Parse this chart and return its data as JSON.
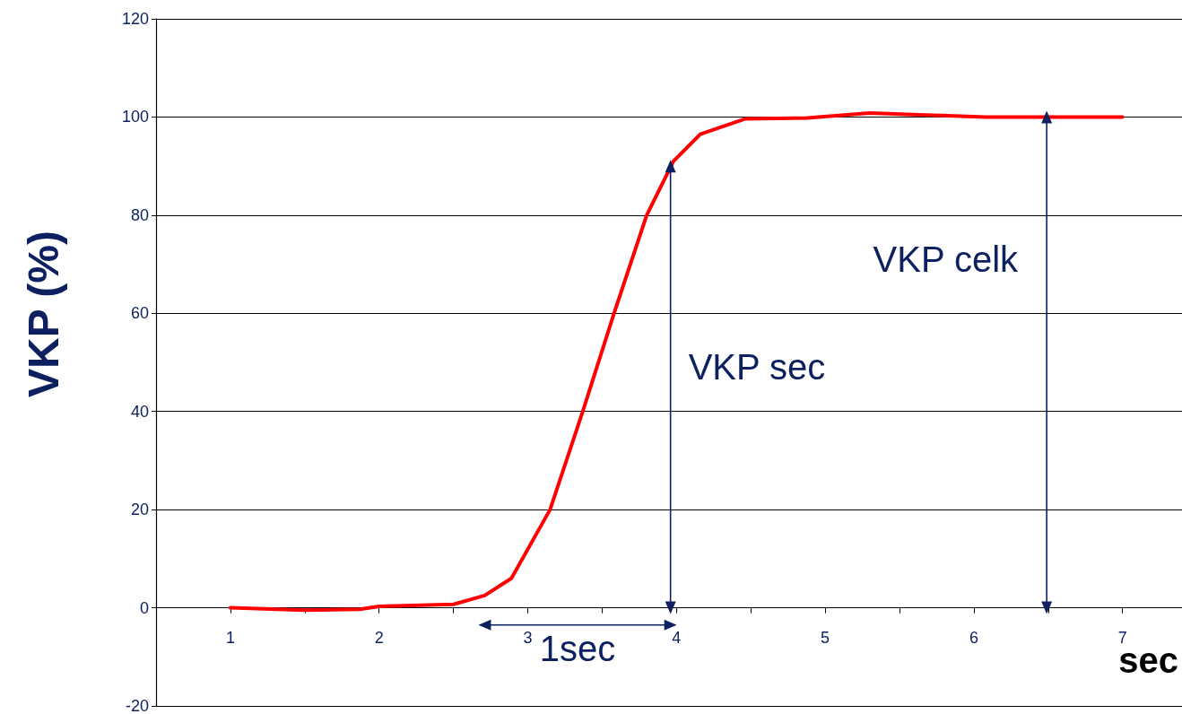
{
  "chart_data": {
    "type": "line",
    "xlabel": "sec",
    "ylabel": "VKP (%)",
    "x": [
      1,
      1.5,
      1.87,
      2,
      2.5,
      2.71,
      2.89,
      3.15,
      3.37,
      3.58,
      3.8,
      3.98,
      4.16,
      4.46,
      4.88,
      5.3,
      5.78,
      6.08,
      7
    ],
    "series": [
      {
        "color": "#ff0000",
        "values": [
          0,
          -0.5,
          -0.3,
          0.3,
          0.7,
          2.5,
          6,
          20,
          40,
          60,
          80,
          91,
          96.5,
          99.6,
          99.8,
          100.8,
          100.3,
          100,
          100
        ]
      },
      {
        "color": "#0d2160",
        "x": [
          3.96,
          3.96
        ],
        "values": [
          0,
          90
        ],
        "marker": "triangle"
      },
      {
        "color": "#0d2160",
        "x": [
          6.49,
          6.49
        ],
        "values": [
          0,
          100
        ],
        "marker": "triangle"
      },
      {
        "color": "#0d2160",
        "x": [
          2.71,
          3.96
        ],
        "values": [
          -3.5,
          -3.5
        ],
        "marker": "triangle"
      }
    ],
    "xlim": [
      0.5,
      7.4
    ],
    "xticks": [
      {
        "value": 0.5,
        "label": null
      },
      1,
      {
        "value": 1.5,
        "label": null
      },
      2,
      {
        "value": 2.5,
        "label": null
      },
      3,
      {
        "value": 3.5,
        "label": null
      },
      4,
      {
        "value": 4.5,
        "label": null
      },
      5,
      {
        "value": 5.5,
        "label": null
      },
      6,
      {
        "value": 6.5,
        "label": null
      },
      7
    ],
    "ylim": [
      -20,
      120
    ],
    "yticks": [
      -20,
      0,
      20,
      40,
      60,
      80,
      100,
      120
    ],
    "grid": "y",
    "marker": "none",
    "line_style": "solid",
    "annotations": [
      {
        "text": "VKP sec",
        "x": 3.96,
        "y": 49
      },
      {
        "text": "VKP celk",
        "x": 6.49,
        "y": 71
      },
      {
        "text": "1sec",
        "x": 3.335,
        "y": -3.5
      }
    ]
  }
}
